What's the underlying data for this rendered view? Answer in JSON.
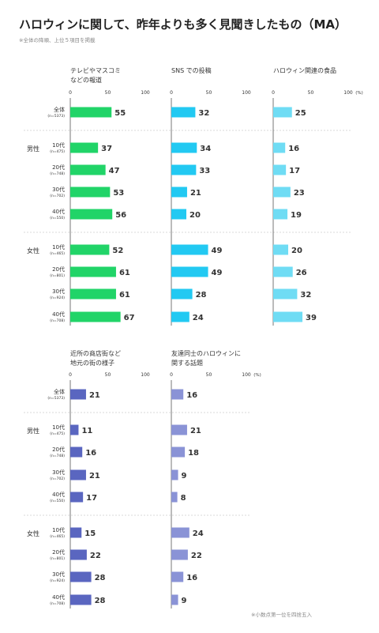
{
  "title": "ハロウィンに関して、昨年よりも多く見聞きしたもの（MA）",
  "subtitle": "※全体の降順、上位５項目を掲載",
  "footnote": "※小数点第一位を四捨五入",
  "colors": {
    "green": "#21d468",
    "cyan": "#22c9f2",
    "lightcyan": "#6fdcf4",
    "indigo": "#5a66c0",
    "periwinkle": "#8a93d6"
  },
  "row_labels": {
    "total": {
      "label": "全体",
      "n": "(n=5373)"
    },
    "male": {
      "group": "男性",
      "ages": [
        {
          "age": "10代",
          "n": "(n=475)"
        },
        {
          "age": "20代",
          "n": "(n=748)"
        },
        {
          "age": "30代",
          "n": "(n=702)"
        },
        {
          "age": "40代",
          "n": "(n=550)"
        }
      ]
    },
    "female": {
      "group": "女性",
      "ages": [
        {
          "age": "10代",
          "n": "(n=465)"
        },
        {
          "age": "20代",
          "n": "(n=801)"
        },
        {
          "age": "30代",
          "n": "(n=924)"
        },
        {
          "age": "40代",
          "n": "(n=708)"
        }
      ]
    }
  },
  "axis": {
    "ticks": [
      "0",
      "50",
      "100"
    ],
    "unit": "(%)",
    "xlim": [
      0,
      100
    ]
  },
  "chart_data": [
    {
      "type": "bar",
      "title": "テレビやマスコミ\nなどの報道",
      "color": "#21d468",
      "categories": [
        "全体",
        "男性10代",
        "男性20代",
        "男性30代",
        "男性40代",
        "女性10代",
        "女性20代",
        "女性30代",
        "女性40代"
      ],
      "values": [
        55,
        37,
        47,
        53,
        56,
        52,
        61,
        61,
        67
      ],
      "xlim": [
        0,
        100
      ]
    },
    {
      "type": "bar",
      "title": "SNS での投稿",
      "color": "#22c9f2",
      "categories": [
        "全体",
        "男性10代",
        "男性20代",
        "男性30代",
        "男性40代",
        "女性10代",
        "女性20代",
        "女性30代",
        "女性40代"
      ],
      "values": [
        32,
        34,
        33,
        21,
        20,
        49,
        49,
        28,
        24
      ],
      "xlim": [
        0,
        100
      ]
    },
    {
      "type": "bar",
      "title": "ハロウィン関連の食品",
      "color": "#6fdcf4",
      "categories": [
        "全体",
        "男性10代",
        "男性20代",
        "男性30代",
        "男性40代",
        "女性10代",
        "女性20代",
        "女性30代",
        "女性40代"
      ],
      "values": [
        25,
        16,
        17,
        23,
        19,
        20,
        26,
        32,
        39
      ],
      "xlim": [
        0,
        100
      ]
    },
    {
      "type": "bar",
      "title": "近所の商店街など\n地元の街の様子",
      "color": "#5a66c0",
      "categories": [
        "全体",
        "男性10代",
        "男性20代",
        "男性30代",
        "男性40代",
        "女性10代",
        "女性20代",
        "女性30代",
        "女性40代"
      ],
      "values": [
        21,
        11,
        16,
        21,
        17,
        15,
        22,
        28,
        28
      ],
      "xlim": [
        0,
        100
      ]
    },
    {
      "type": "bar",
      "title": "友達同士のハロウィンに\n関する話題",
      "color": "#8a93d6",
      "categories": [
        "全体",
        "男性10代",
        "男性20代",
        "男性30代",
        "男性40代",
        "女性10代",
        "女性20代",
        "女性30代",
        "女性40代"
      ],
      "values": [
        16,
        21,
        18,
        9,
        8,
        24,
        22,
        16,
        9
      ],
      "xlim": [
        0,
        100
      ]
    }
  ]
}
